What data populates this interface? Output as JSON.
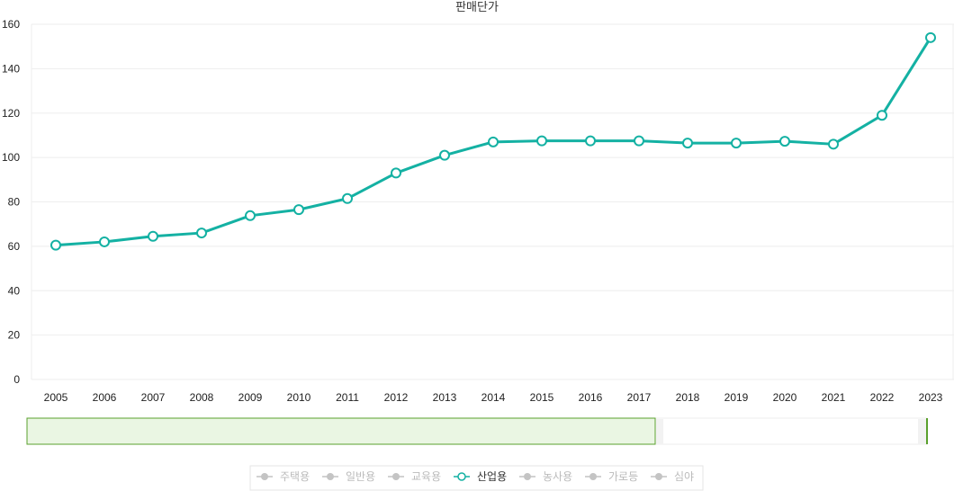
{
  "chart_data": {
    "type": "line",
    "title": "판매단가",
    "x": [
      "2005",
      "2006",
      "2007",
      "2008",
      "2009",
      "2010",
      "2011",
      "2012",
      "2013",
      "2014",
      "2015",
      "2016",
      "2017",
      "2018",
      "2019",
      "2020",
      "2021",
      "2022",
      "2023"
    ],
    "series": [
      {
        "name": "산업용",
        "values": [
          60.5,
          62.0,
          64.5,
          66.0,
          73.8,
          76.5,
          81.5,
          93.0,
          101.0,
          107.0,
          107.5,
          107.5,
          107.5,
          106.5,
          106.5,
          107.3,
          106.0,
          119.0,
          154.0
        ],
        "color": "#14b1a3"
      }
    ],
    "ylim": [
      0,
      160
    ],
    "yticks": [
      "0",
      "20",
      "40",
      "60",
      "80",
      "100",
      "120",
      "140",
      "160"
    ],
    "xlabel": "",
    "ylabel": "",
    "grid": true,
    "legend": {
      "position": "bottom-center",
      "items": [
        {
          "label": "주택용",
          "active": false
        },
        {
          "label": "일반용",
          "active": false
        },
        {
          "label": "교육용",
          "active": false
        },
        {
          "label": "산업용",
          "active": true
        },
        {
          "label": "농사용",
          "active": false
        },
        {
          "label": "가로등",
          "active": false
        },
        {
          "label": "심야",
          "active": false
        }
      ]
    },
    "range_selector": {
      "start_fraction": 0.0,
      "end_fraction": 0.698
    }
  },
  "colors": {
    "line": "#14b1a3",
    "grid": "#eeeeee",
    "selector_fill": "#eaf6e3",
    "selector_border": "#5aa02c",
    "legend_inactive": "#c4c4c4"
  }
}
